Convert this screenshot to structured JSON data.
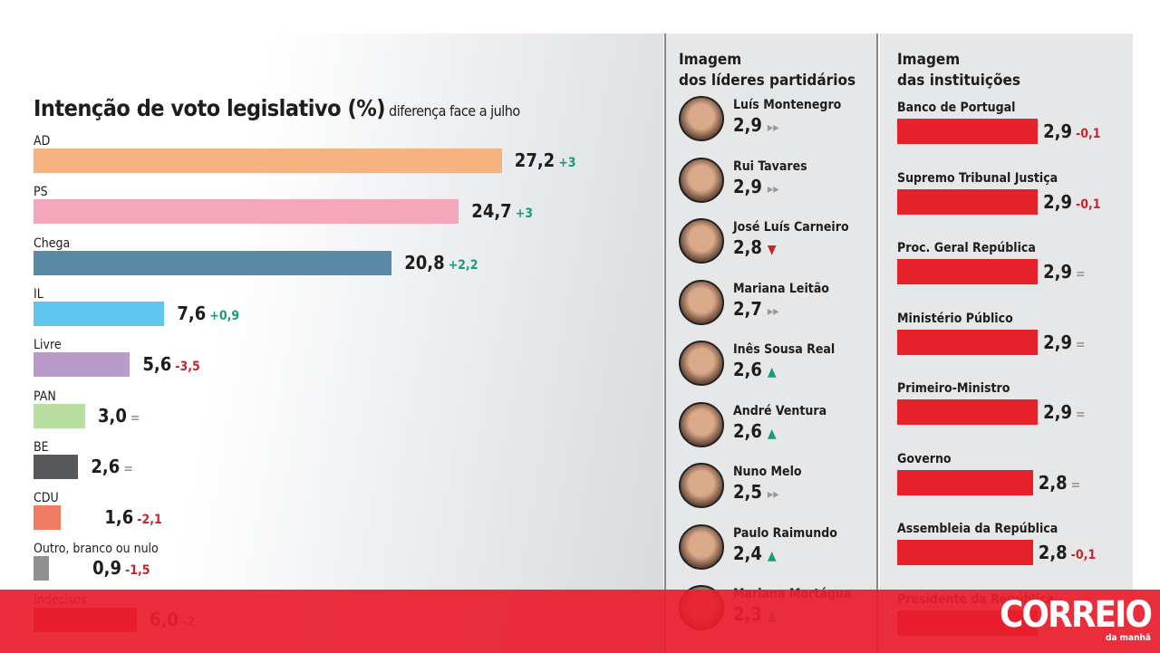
{
  "chart_data": {
    "type": "bar",
    "title": "Intenção de voto legislativo (%)",
    "subtitle": "diferença face a julho",
    "categories": [
      "AD",
      "PS",
      "Chega",
      "IL",
      "Livre",
      "PAN",
      "BE",
      "CDU",
      "Outro, branco ou nulo",
      "Indecisos"
    ],
    "values": [
      27.2,
      24.7,
      20.8,
      7.6,
      5.6,
      3.0,
      2.6,
      1.6,
      0.9,
      6.0
    ],
    "value_labels": [
      "27,2",
      "24,7",
      "20,8",
      "7,6",
      "5,6",
      "3,0",
      "2,6",
      "1,6",
      "0,9",
      "6,0"
    ],
    "changes": [
      "+3",
      "+3",
      "+2,2",
      "+0,9",
      "-3,5",
      "=",
      "=",
      "-2,1",
      "-1,5",
      "-2"
    ],
    "colors": [
      "#f6b37f",
      "#f4a7bb",
      "#5a8aa6",
      "#5ec5ee",
      "#b99ac9",
      "#b9dfa0",
      "#57585b",
      "#ef7c63",
      "#8e8f91",
      "#e5222a"
    ]
  },
  "leaders": {
    "title_line1": "Imagem",
    "title_line2": "dos líderes partidários",
    "items": [
      {
        "name": "Luís Montenegro",
        "value": "2,9",
        "trend": "▸▸",
        "trend_type": "eq"
      },
      {
        "name": "Rui Tavares",
        "value": "2,9",
        "trend": "▸▸",
        "trend_type": "eq"
      },
      {
        "name": "José Luís Carneiro",
        "value": "2,8",
        "trend": "▼",
        "trend_type": "neg"
      },
      {
        "name": "Mariana Leitão",
        "value": "2,7",
        "trend": "▸▸",
        "trend_type": "eq"
      },
      {
        "name": "Inês Sousa Real",
        "value": "2,6",
        "trend": "▲",
        "trend_type": "pos"
      },
      {
        "name": "André Ventura",
        "value": "2,6",
        "trend": "▲",
        "trend_type": "pos"
      },
      {
        "name": "Nuno Melo",
        "value": "2,5",
        "trend": "▸▸",
        "trend_type": "eq"
      },
      {
        "name": "Paulo Raimundo",
        "value": "2,4",
        "trend": "▲",
        "trend_type": "pos"
      },
      {
        "name": "Mariana Mortágua",
        "value": "2,3",
        "trend": "▲",
        "trend_type": "pos"
      }
    ]
  },
  "institutions": {
    "title_line1": "Imagem",
    "title_line2": "das instituições",
    "items": [
      {
        "name": "Banco de Portugal",
        "value": 2.9,
        "label": "2,9",
        "change": "-0,1"
      },
      {
        "name": "Supremo Tribunal Justiça",
        "value": 2.9,
        "label": "2,9",
        "change": "-0,1"
      },
      {
        "name": "Proc. Geral República",
        "value": 2.9,
        "label": "2,9",
        "change": "="
      },
      {
        "name": "Ministério Público",
        "value": 2.9,
        "label": "2,9",
        "change": "="
      },
      {
        "name": "Primeiro-Ministro",
        "value": 2.9,
        "label": "2,9",
        "change": "="
      },
      {
        "name": "Governo",
        "value": 2.8,
        "label": "2,8",
        "change": "="
      },
      {
        "name": "Assembleia da República",
        "value": 2.8,
        "label": "2,8",
        "change": "-0,1"
      },
      {
        "name": "Presidente da República",
        "value": null,
        "label": "",
        "change": ""
      }
    ]
  },
  "banner": {
    "logo": "CORREIO",
    "logo_sub": "da manhã",
    "color": "#e5222a"
  }
}
